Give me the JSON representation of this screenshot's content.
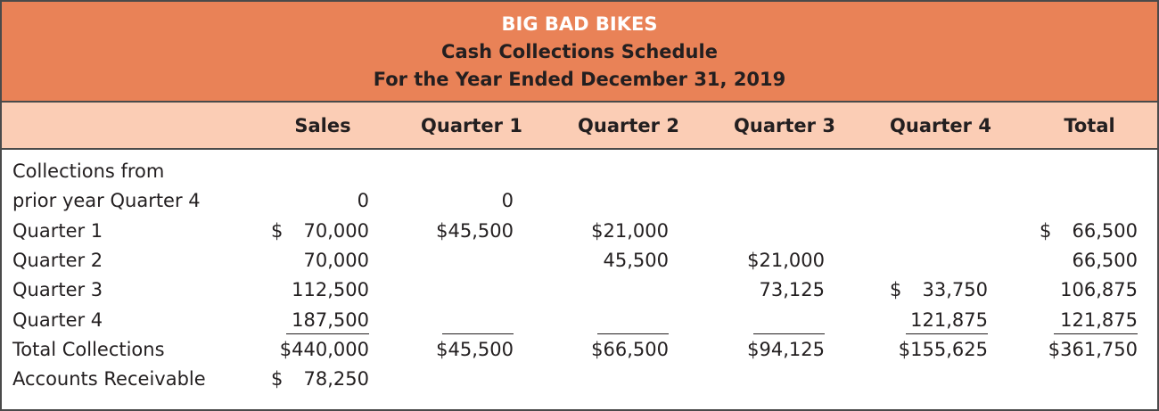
{
  "title": {
    "company": "BIG BAD BIKES",
    "report": "Cash Collections Schedule",
    "period": "For the Year Ended December 31, 2019"
  },
  "colors": {
    "title_bg": "#E98257",
    "header_bg": "#FBCDB5",
    "border": "#4a4a4a"
  },
  "columns": [
    "Sales",
    "Quarter 1",
    "Quarter 2",
    "Quarter 3",
    "Quarter 4",
    "Total"
  ],
  "rows": [
    {
      "label": "Collections from",
      "cells": [
        null,
        null,
        null,
        null,
        null,
        null
      ]
    },
    {
      "label": "prior year Quarter 4",
      "cells": [
        {
          "pre": "",
          "amt": "0"
        },
        {
          "pre": "",
          "amt": "0"
        },
        null,
        null,
        null,
        null
      ]
    },
    {
      "label": "Quarter 1",
      "cells": [
        {
          "pre": "$",
          "amt": "70,000"
        },
        {
          "pre": "",
          "amt": "$45,500"
        },
        {
          "pre": "",
          "amt": "$21,000"
        },
        null,
        null,
        {
          "pre": "$",
          "amt": "66,500"
        }
      ]
    },
    {
      "label": "Quarter 2",
      "cells": [
        {
          "pre": "",
          "amt": "70,000"
        },
        null,
        {
          "pre": "",
          "amt": "45,500"
        },
        {
          "pre": "",
          "amt": "$21,000"
        },
        null,
        {
          "pre": "",
          "amt": "66,500"
        }
      ]
    },
    {
      "label": "Quarter 3",
      "cells": [
        {
          "pre": "",
          "amt": "112,500"
        },
        null,
        null,
        {
          "pre": "",
          "amt": "73,125"
        },
        {
          "pre": "$",
          "amt": "33,750"
        },
        {
          "pre": "",
          "amt": "106,875"
        }
      ]
    },
    {
      "label": "Quarter 4",
      "underline": true,
      "cells": [
        {
          "pre": "",
          "amt": "187,500"
        },
        {
          "pre": "",
          "amt": ""
        },
        {
          "pre": "",
          "amt": ""
        },
        {
          "pre": "",
          "amt": ""
        },
        {
          "pre": "",
          "amt": "121,875"
        },
        {
          "pre": "",
          "amt": "121,875"
        }
      ]
    },
    {
      "label": "Total Collections",
      "cells": [
        {
          "pre": "",
          "amt": "$440,000"
        },
        {
          "pre": "",
          "amt": "$45,500"
        },
        {
          "pre": "",
          "amt": "$66,500"
        },
        {
          "pre": "",
          "amt": "$94,125"
        },
        {
          "pre": "",
          "amt": "$155,625"
        },
        {
          "pre": "",
          "amt": "$361,750"
        }
      ]
    },
    {
      "label": "Accounts Receivable",
      "cells": [
        {
          "pre": "$",
          "amt": "78,250"
        },
        null,
        null,
        null,
        null,
        null
      ]
    }
  ]
}
